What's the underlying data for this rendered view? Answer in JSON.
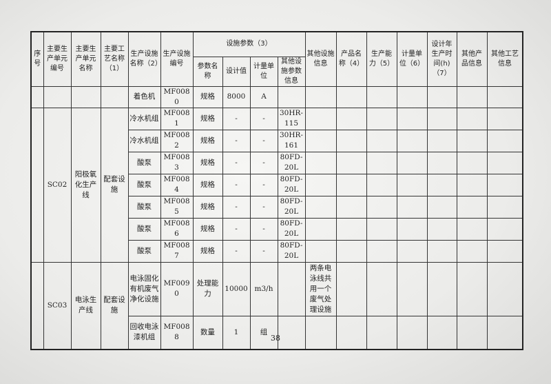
{
  "header": {
    "top": [
      "序号",
      "主要生产单元编号",
      "主要生产单元名称",
      "主要工艺名称（1）",
      "生产设施名称（2）",
      "生产设施编号"
    ],
    "params_group": "设施参数（3）",
    "params": [
      "参数名称",
      "设计值",
      "计量单位",
      "其他设施参数信息"
    ],
    "rest": [
      "其他设施信息",
      "产品名称（4）",
      "生产能力（5）",
      "计量单位（6）",
      "设计年生产时间(h)（7）",
      "其他产品信息",
      "其他工艺信息"
    ]
  },
  "groups": [
    {
      "seq": "",
      "unit_code": "",
      "unit_name": "",
      "process": "",
      "rows": [
        {
          "name": "着色机",
          "code": "MF0080",
          "param": "规格",
          "value": "8000",
          "unit": "A",
          "other_param": "",
          "other_info": ""
        }
      ]
    },
    {
      "seq": "",
      "unit_code": "SC02",
      "unit_name": "阳极氧化生产线",
      "process": "配套设施",
      "rows": [
        {
          "name": "冷水机组",
          "code": "MF0081",
          "param": "规格",
          "value": "-",
          "unit": "-",
          "other_param": "30HR-115",
          "other_info": ""
        },
        {
          "name": "冷水机组",
          "code": "MF0082",
          "param": "规格",
          "value": "-",
          "unit": "-",
          "other_param": "30HR-161",
          "other_info": ""
        },
        {
          "name": "酸泵",
          "code": "MF0083",
          "param": "规格",
          "value": "-",
          "unit": "-",
          "other_param": "80FD-20L",
          "other_info": ""
        },
        {
          "name": "酸泵",
          "code": "MF0084",
          "param": "规格",
          "value": "-",
          "unit": "-",
          "other_param": "80FD-20L",
          "other_info": ""
        },
        {
          "name": "酸泵",
          "code": "MF0085",
          "param": "规格",
          "value": "-",
          "unit": "-",
          "other_param": "80FD-20L",
          "other_info": ""
        },
        {
          "name": "酸泵",
          "code": "MF0086",
          "param": "规格",
          "value": "-",
          "unit": "-",
          "other_param": "80FD-20L",
          "other_info": ""
        },
        {
          "name": "酸泵",
          "code": "MF0087",
          "param": "规格",
          "value": "-",
          "unit": "-",
          "other_param": "80FD-20L",
          "other_info": ""
        }
      ]
    },
    {
      "seq": "",
      "unit_code": "SC03",
      "unit_name": "电泳生产线",
      "process": "配套设施",
      "rows": [
        {
          "name": "电泳固化有机废气净化设施",
          "code": "MF0090",
          "param": "处理能力",
          "value": "10000",
          "unit": "m3/h",
          "other_param": "",
          "other_info": "两条电泳线共用一个废气处理设施"
        },
        {
          "name": "回收电泳漆机组",
          "code": "MF0088",
          "param": "数量",
          "value": "1",
          "unit": "组",
          "other_param": "",
          "other_info": ""
        }
      ]
    }
  ],
  "page_number": "38"
}
